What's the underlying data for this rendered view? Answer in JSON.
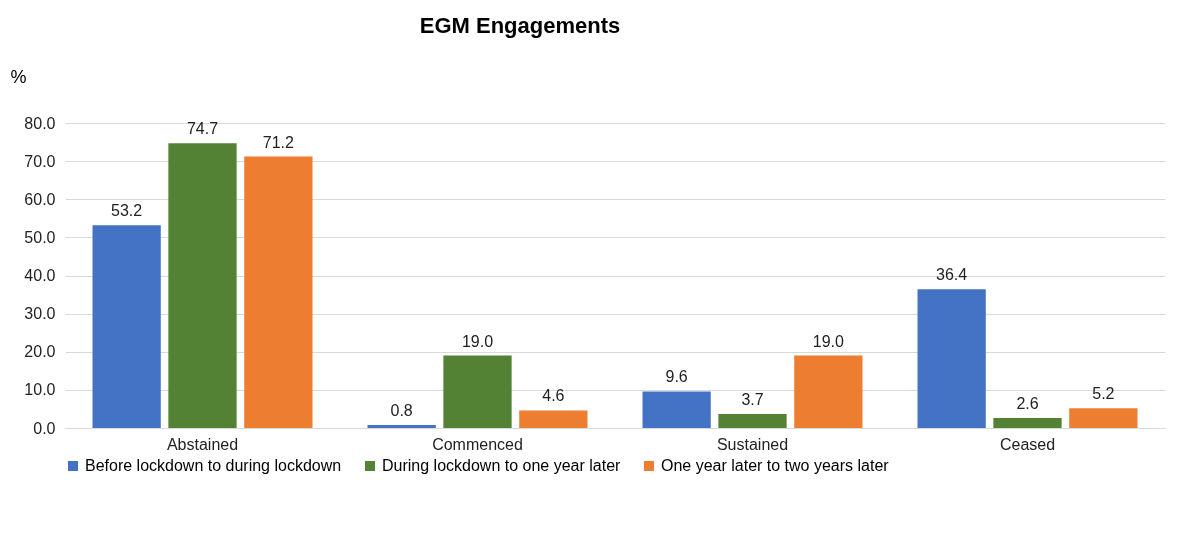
{
  "chart_data": {
    "type": "bar",
    "title": "EGM Engagements",
    "ylabel": "%",
    "categories": [
      "Abstained",
      "Commenced",
      "Sustained",
      "Ceased"
    ],
    "series": [
      {
        "name": "Before lockdown to during lockdown",
        "color": "#4472c4",
        "values": [
          53.2,
          0.8,
          9.6,
          36.4
        ],
        "value_labels": [
          "53.2",
          "0.8",
          "9.6",
          "36.4"
        ]
      },
      {
        "name": "During lockdown to one year later",
        "color": "#548235",
        "values": [
          74.7,
          19.0,
          3.7,
          2.6
        ],
        "value_labels": [
          "74.7",
          "19.0",
          "3.7",
          "2.6"
        ]
      },
      {
        "name": "One year later to two years later",
        "color": "#ed7d31",
        "values": [
          71.2,
          4.6,
          19.0,
          5.2
        ],
        "value_labels": [
          "71.2",
          "4.6",
          "19.0",
          "5.2"
        ]
      }
    ],
    "ylim": [
      0,
      80
    ],
    "yticks": [
      {
        "value": 0,
        "label": "0.0"
      },
      {
        "value": 10,
        "label": "10.0"
      },
      {
        "value": 20,
        "label": "20.0"
      },
      {
        "value": 30,
        "label": "30.0"
      },
      {
        "value": 40,
        "label": "40.0"
      },
      {
        "value": 50,
        "label": "50.0"
      },
      {
        "value": 60,
        "label": "60.0"
      },
      {
        "value": 70,
        "label": "70.0"
      },
      {
        "value": 80,
        "label": "80.0"
      }
    ],
    "grid": "y",
    "legend": "bottom"
  }
}
